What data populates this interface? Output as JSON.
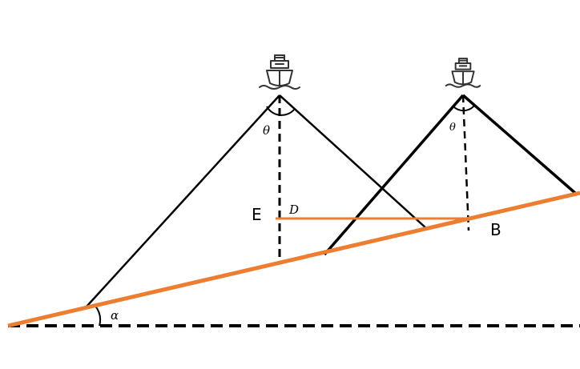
{
  "labels": {
    "theta_left": "θ",
    "theta_right": "θ",
    "alpha": "α",
    "point_e": "E",
    "point_d": "D",
    "point_b": "B"
  },
  "icons": {
    "ship_left": "ship-icon",
    "ship_right": "ship-icon"
  },
  "colors": {
    "seabed": "#ED7D31",
    "beam": "#000000",
    "background": "#FFFFFF"
  }
}
